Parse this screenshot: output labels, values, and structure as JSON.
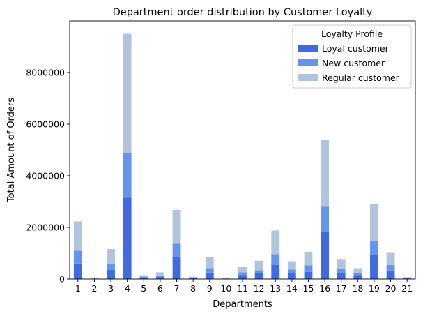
{
  "chart_data": {
    "type": "bar",
    "stacked": true,
    "title": "Department order distribution by Customer Loyalty",
    "xlabel": "Departments",
    "ylabel": "Total Amount of Orders",
    "categories": [
      "1",
      "2",
      "3",
      "4",
      "5",
      "6",
      "7",
      "8",
      "9",
      "10",
      "11",
      "12",
      "13",
      "14",
      "15",
      "16",
      "17",
      "18",
      "19",
      "20",
      "21"
    ],
    "ylim": [
      0,
      10000000
    ],
    "yticks": [
      0,
      2000000,
      4000000,
      6000000,
      8000000
    ],
    "ytick_labels": [
      "0",
      "2000000",
      "4000000",
      "6000000",
      "8000000"
    ],
    "legend": {
      "title": "Loyalty Profile",
      "placement": "top-right"
    },
    "series": [
      {
        "name": "Loyal customer",
        "color": "#4169e1",
        "values": [
          600000,
          12000,
          350000,
          3150000,
          50000,
          80000,
          850000,
          30000,
          250000,
          15000,
          150000,
          230000,
          550000,
          220000,
          280000,
          1820000,
          230000,
          150000,
          940000,
          330000,
          25000
        ]
      },
      {
        "name": "New customer",
        "color": "#6495ed",
        "values": [
          500000,
          10000,
          250000,
          1750000,
          40000,
          60000,
          520000,
          20000,
          170000,
          10000,
          110000,
          110000,
          410000,
          150000,
          250000,
          980000,
          150000,
          70000,
          530000,
          210000,
          15000
        ]
      },
      {
        "name": "Regular customer",
        "color": "#b0c4de",
        "values": [
          1130000,
          18000,
          560000,
          4600000,
          60000,
          120000,
          1310000,
          40000,
          440000,
          20000,
          200000,
          370000,
          920000,
          320000,
          530000,
          2600000,
          370000,
          200000,
          1430000,
          500000,
          35000
        ]
      }
    ]
  }
}
